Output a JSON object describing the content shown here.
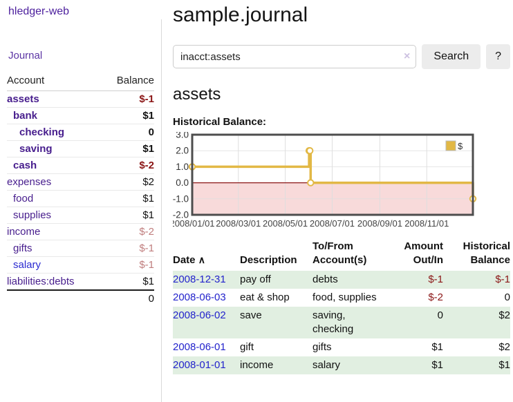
{
  "app": {
    "title": "hledger-web"
  },
  "sidebar": {
    "journal_link": "Journal",
    "table_headers": {
      "account": "Account",
      "balance": "Balance"
    },
    "accounts": [
      {
        "name": "assets",
        "depth": 1,
        "bold": true,
        "balance": "$-1",
        "balance_style": "neg"
      },
      {
        "name": "bank",
        "depth": 2,
        "bold": true,
        "balance": "$1",
        "balance_style": "pos"
      },
      {
        "name": "checking",
        "depth": 3,
        "bold": true,
        "balance": "0",
        "balance_style": "pos"
      },
      {
        "name": "saving",
        "depth": 3,
        "bold": true,
        "balance": "$1",
        "balance_style": "pos"
      },
      {
        "name": "cash",
        "depth": 2,
        "bold": true,
        "balance": "$-2",
        "balance_style": "neg"
      },
      {
        "name": "expenses",
        "depth": 1,
        "bold": false,
        "balance": "$2",
        "balance_style": "pos"
      },
      {
        "name": "food",
        "depth": 2,
        "bold": false,
        "balance": "$1",
        "balance_style": "pos"
      },
      {
        "name": "supplies",
        "depth": 2,
        "bold": false,
        "balance": "$1",
        "balance_style": "pos"
      },
      {
        "name": "income",
        "depth": 1,
        "bold": false,
        "balance": "$-2",
        "balance_style": "fneg"
      },
      {
        "name": "gifts",
        "depth": 2,
        "bold": false,
        "balance": "$-1",
        "balance_style": "fneg"
      },
      {
        "name": "salary",
        "depth": 2,
        "bold": false,
        "link_style": "blue",
        "balance": "$-1",
        "balance_style": "fneg"
      },
      {
        "name": "liabilities:debts",
        "depth": 1,
        "bold": false,
        "balance": "$1",
        "balance_style": "pos"
      }
    ],
    "total": "0"
  },
  "header": {
    "title": "sample.journal"
  },
  "search": {
    "value": "inacct:assets",
    "clear_icon": "×",
    "button": "Search",
    "help_button": "?"
  },
  "account_page": {
    "title": "assets",
    "chart_label": "Historical Balance:"
  },
  "chart_data": {
    "type": "line",
    "subtype": "step-after",
    "title": "Historical Balance:",
    "series": [
      {
        "name": "$",
        "points": [
          [
            "2008-01-01",
            1
          ],
          [
            "2008-06-01",
            2
          ],
          [
            "2008-06-02",
            2
          ],
          [
            "2008-06-03",
            0
          ],
          [
            "2008-12-31",
            -1
          ]
        ]
      }
    ],
    "x_range": [
      "2008-01-01",
      "2008-12-31"
    ],
    "y_range": [
      -2,
      3
    ],
    "y_ticks": [
      "3.0",
      "2.0",
      "1.0",
      "0.0",
      "-1.0",
      "-2.0"
    ],
    "x_ticks": [
      {
        "pos": "2008-01-01",
        "label": "2008/01/01"
      },
      {
        "pos": "2008-03-01",
        "label": "2008/03/01"
      },
      {
        "pos": "2008-05-01",
        "label": "2008/05/01"
      },
      {
        "pos": "2008-07-01",
        "label": "2008/07/01"
      },
      {
        "pos": "2008-09-01",
        "label": "2008/09/01"
      },
      {
        "pos": "2008-11-01",
        "label": "2008/11/01"
      }
    ],
    "grid": true,
    "legend_position": "top-right",
    "colors": {
      "line": "#e2b845",
      "marker_fill": "#ffffff",
      "negative_region": "#f8dada",
      "zero_line": "#8c1616",
      "grid": "#dedede",
      "frame": "#4d4d4d",
      "tick_text": "#444444"
    }
  },
  "register_table": {
    "headers": {
      "date": "Date",
      "sort_icon": "∧",
      "description": "Description",
      "accounts": "To/From Account(s)",
      "amount": "Amount Out/In",
      "balance": "Historical Balance"
    },
    "rows": [
      {
        "date": "2008-12-31",
        "description": "pay off",
        "accounts": "debts",
        "amount": "$-1",
        "amount_style": "neg",
        "balance": "$-1",
        "balance_style": "neg"
      },
      {
        "date": "2008-06-03",
        "description": "eat & shop",
        "accounts": "food, supplies",
        "amount": "$-2",
        "amount_style": "neg",
        "balance": "0",
        "balance_style": "pos"
      },
      {
        "date": "2008-06-02",
        "description": "save",
        "accounts": "saving, checking",
        "amount": "0",
        "amount_style": "pos",
        "balance": "$2",
        "balance_style": "pos"
      },
      {
        "date": "2008-06-01",
        "description": "gift",
        "accounts": "gifts",
        "amount": "$1",
        "amount_style": "pos",
        "balance": "$2",
        "balance_style": "pos"
      },
      {
        "date": "2008-01-01",
        "description": "income",
        "accounts": "salary",
        "amount": "$1",
        "amount_style": "pos",
        "balance": "$1",
        "balance_style": "pos"
      }
    ]
  },
  "colors": {
    "accent_purple": "#471d8d",
    "link_blue": "#2323cc",
    "negative_red": "#8b1616",
    "faded_negative": "#c07e7e",
    "row_green": "#e1efe1",
    "chart_gold": "#e2b845"
  }
}
